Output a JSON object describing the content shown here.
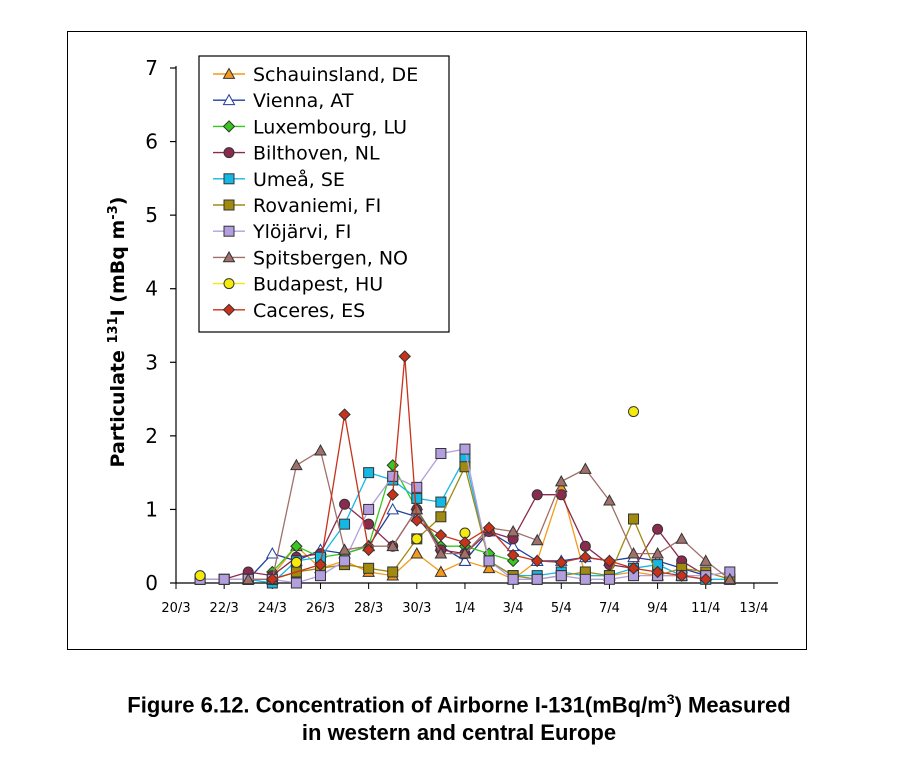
{
  "chart_data": {
    "type": "line",
    "title": "",
    "xlabel": "",
    "ylabel_main": "Particulate ",
    "ylabel_sup": "131",
    "ylabel_mid": "I (mBq m",
    "ylabel_sup2": "-3",
    "ylabel_end": ")",
    "ylim": [
      0,
      7
    ],
    "yticks": [
      "0",
      "1",
      "2",
      "3",
      "4",
      "5",
      "6",
      "7"
    ],
    "xlim": [
      0,
      25
    ],
    "xticks": [
      {
        "x": 0,
        "label": "20/3"
      },
      {
        "x": 2,
        "label": "22/3"
      },
      {
        "x": 4,
        "label": "24/3"
      },
      {
        "x": 6,
        "label": "26/3"
      },
      {
        "x": 8,
        "label": "28/3"
      },
      {
        "x": 10,
        "label": "30/3"
      },
      {
        "x": 12,
        "label": "1/4"
      },
      {
        "x": 14,
        "label": "3/4"
      },
      {
        "x": 16,
        "label": "5/4"
      },
      {
        "x": 18,
        "label": "7/4"
      },
      {
        "x": 20,
        "label": "9/4"
      },
      {
        "x": 22,
        "label": "11/4"
      },
      {
        "x": 24,
        "label": "13/4"
      }
    ],
    "legend_position": "top-left",
    "series": [
      {
        "name": "Schauinsland, DE",
        "color": "#f39a1c",
        "marker": "triangle",
        "filled": true,
        "points": [
          [
            4,
            0.1
          ],
          [
            5,
            0.5
          ],
          [
            6,
            0.2
          ],
          [
            7,
            0.3
          ],
          [
            8,
            0.15
          ],
          [
            9,
            0.1
          ],
          [
            10,
            0.4
          ],
          [
            11,
            0.15
          ],
          [
            12,
            0.3
          ],
          [
            13,
            0.2
          ],
          [
            14,
            0.05
          ],
          [
            15,
            0.3
          ],
          [
            16,
            1.3
          ],
          [
            17,
            0.1
          ],
          [
            18,
            0.1
          ],
          [
            19,
            0.15
          ],
          [
            20,
            0.1
          ],
          [
            21,
            0.1
          ]
        ]
      },
      {
        "name": "Vienna, AT",
        "color": "#1f3fa0",
        "marker": "triangle",
        "filled": false,
        "points": [
          [
            3,
            0.05
          ],
          [
            4,
            0.4
          ],
          [
            5,
            0.3
          ],
          [
            6,
            0.45
          ],
          [
            7,
            0.4
          ],
          [
            8,
            0.5
          ],
          [
            9,
            1.0
          ],
          [
            10,
            0.9
          ],
          [
            11,
            0.5
          ],
          [
            12,
            0.3
          ],
          [
            13,
            0.7
          ],
          [
            14,
            0.5
          ],
          [
            15,
            0.3
          ],
          [
            16,
            0.3
          ],
          [
            17,
            0.35
          ],
          [
            18,
            0.3
          ],
          [
            19,
            0.35
          ],
          [
            20,
            0.3
          ],
          [
            21,
            0.2
          ],
          [
            22,
            0.1
          ]
        ]
      },
      {
        "name": "Luxembourg, LU",
        "color": "#36c81d",
        "marker": "diamond",
        "filled": true,
        "points": [
          [
            4,
            0.15
          ],
          [
            5,
            0.5
          ],
          [
            6,
            0.35
          ],
          [
            7,
            0.4
          ],
          [
            8,
            0.5
          ],
          [
            9,
            1.6
          ],
          [
            10,
            1.0
          ],
          [
            11,
            0.5
          ],
          [
            12,
            0.5
          ],
          [
            13,
            0.4
          ],
          [
            14,
            0.3
          ]
        ]
      },
      {
        "name": "Bilthoven, NL",
        "color": "#8a2a4f",
        "marker": "circle",
        "filled": true,
        "points": [
          [
            2,
            0.05
          ],
          [
            3,
            0.15
          ],
          [
            4,
            0.1
          ],
          [
            5,
            0.35
          ],
          [
            6,
            0.4
          ],
          [
            7,
            1.07
          ],
          [
            8,
            0.8
          ],
          [
            9,
            0.5
          ],
          [
            10,
            1.0
          ],
          [
            11,
            0.45
          ],
          [
            12,
            0.4
          ],
          [
            13,
            0.7
          ],
          [
            14,
            0.6
          ],
          [
            15,
            1.2
          ],
          [
            16,
            1.2
          ],
          [
            17,
            0.5
          ],
          [
            18,
            0.25
          ],
          [
            19,
            0.2
          ],
          [
            20,
            0.73
          ],
          [
            21,
            0.3
          ],
          [
            22,
            0.1
          ]
        ]
      },
      {
        "name": "Umeå, SE",
        "color": "#15b7e3",
        "marker": "square",
        "filled": true,
        "points": [
          [
            1,
            0.05
          ],
          [
            2,
            0.05
          ],
          [
            3,
            0.05
          ],
          [
            4,
            0.0
          ],
          [
            5,
            0.3
          ],
          [
            6,
            0.35
          ],
          [
            7,
            0.8
          ],
          [
            8,
            1.5
          ],
          [
            9,
            1.4
          ],
          [
            10,
            1.15
          ],
          [
            11,
            1.1
          ],
          [
            12,
            1.7
          ],
          [
            13,
            0.3
          ],
          [
            14,
            0.1
          ],
          [
            15,
            0.1
          ],
          [
            16,
            0.15
          ],
          [
            17,
            0.1
          ],
          [
            18,
            0.1
          ],
          [
            19,
            0.2
          ],
          [
            20,
            0.25
          ],
          [
            21,
            0.1
          ],
          [
            22,
            0.05
          ],
          [
            23,
            0.05
          ]
        ]
      },
      {
        "name": "Rovaniemi, FI",
        "color": "#a08a10",
        "marker": "square",
        "filled": true,
        "points": [
          [
            1,
            0.05
          ],
          [
            2,
            0.05
          ],
          [
            3,
            0.05
          ],
          [
            4,
            0.05
          ],
          [
            5,
            0.15
          ],
          [
            6,
            0.2
          ],
          [
            7,
            0.25
          ],
          [
            8,
            0.2
          ],
          [
            9,
            0.15
          ],
          [
            10,
            0.6
          ],
          [
            11,
            0.9
          ],
          [
            12,
            1.58
          ],
          [
            13,
            0.3
          ],
          [
            14,
            0.1
          ],
          [
            15,
            0.05
          ],
          [
            16,
            0.1
          ],
          [
            17,
            0.15
          ],
          [
            18,
            0.1
          ],
          [
            19,
            0.87
          ],
          [
            20,
            0.1
          ],
          [
            21,
            0.2
          ],
          [
            22,
            0.15
          ],
          [
            23,
            0.05
          ]
        ]
      },
      {
        "name": "Ylöjärvi, FI",
        "color": "#b39ee0",
        "marker": "square",
        "filled": true,
        "points": [
          [
            1,
            0.05
          ],
          [
            2,
            0.05
          ],
          [
            3,
            0.05
          ],
          [
            4,
            0.05
          ],
          [
            5,
            0.0
          ],
          [
            6,
            0.1
          ],
          [
            7,
            0.3
          ],
          [
            8,
            1.0
          ],
          [
            9,
            1.45
          ],
          [
            10,
            1.3
          ],
          [
            11,
            1.76
          ],
          [
            12,
            1.82
          ],
          [
            13,
            0.3
          ],
          [
            14,
            0.05
          ],
          [
            15,
            0.05
          ],
          [
            16,
            0.1
          ],
          [
            17,
            0.05
          ],
          [
            18,
            0.05
          ],
          [
            19,
            0.1
          ],
          [
            20,
            0.1
          ],
          [
            21,
            0.1
          ],
          [
            22,
            0.1
          ],
          [
            23,
            0.15
          ]
        ]
      },
      {
        "name": "Spitsbergen, NO",
        "color": "#a0706a",
        "marker": "triangle",
        "filled": true,
        "points": [
          [
            3,
            0.05
          ],
          [
            4,
            0.05
          ],
          [
            5,
            1.6
          ],
          [
            6,
            1.8
          ],
          [
            7,
            0.45
          ],
          [
            8,
            0.5
          ],
          [
            9,
            0.5
          ],
          [
            10,
            1.0
          ],
          [
            11,
            0.4
          ],
          [
            12,
            0.4
          ],
          [
            13,
            0.75
          ],
          [
            14,
            0.7
          ],
          [
            15,
            0.58
          ],
          [
            16,
            1.38
          ],
          [
            17,
            1.55
          ],
          [
            18,
            1.12
          ],
          [
            19,
            0.4
          ],
          [
            20,
            0.4
          ],
          [
            21,
            0.6
          ],
          [
            22,
            0.3
          ],
          [
            23,
            0.05
          ]
        ]
      },
      {
        "name": "Budapest, HU",
        "color": "#f5ea0c",
        "marker": "circle",
        "filled": true,
        "points": [
          [
            1,
            0.1
          ],
          [
            5,
            0.28
          ],
          [
            10,
            0.6
          ],
          [
            12,
            0.68
          ],
          [
            19,
            2.33
          ]
        ]
      },
      {
        "name": "Caceres, ES",
        "color": "#c8321a",
        "marker": "diamond",
        "filled": true,
        "points": [
          [
            4,
            0.05
          ],
          [
            6,
            0.25
          ],
          [
            7,
            2.29
          ],
          [
            8,
            0.45
          ],
          [
            9,
            1.2
          ],
          [
            9.5,
            3.08
          ],
          [
            10,
            0.85
          ],
          [
            11,
            0.65
          ],
          [
            12,
            0.55
          ],
          [
            13,
            0.75
          ],
          [
            14,
            0.38
          ],
          [
            15,
            0.3
          ],
          [
            16,
            0.28
          ],
          [
            17,
            0.35
          ],
          [
            18,
            0.3
          ],
          [
            19,
            0.2
          ],
          [
            20,
            0.15
          ],
          [
            21,
            0.1
          ],
          [
            22,
            0.05
          ]
        ]
      }
    ]
  },
  "caption": {
    "line1_prefix": "Figure 6.12. Concentration of Airborne I-131(mBq/m",
    "line1_sup": "3",
    "line1_suffix": ") Measured",
    "line2": "in western and central Europe"
  }
}
